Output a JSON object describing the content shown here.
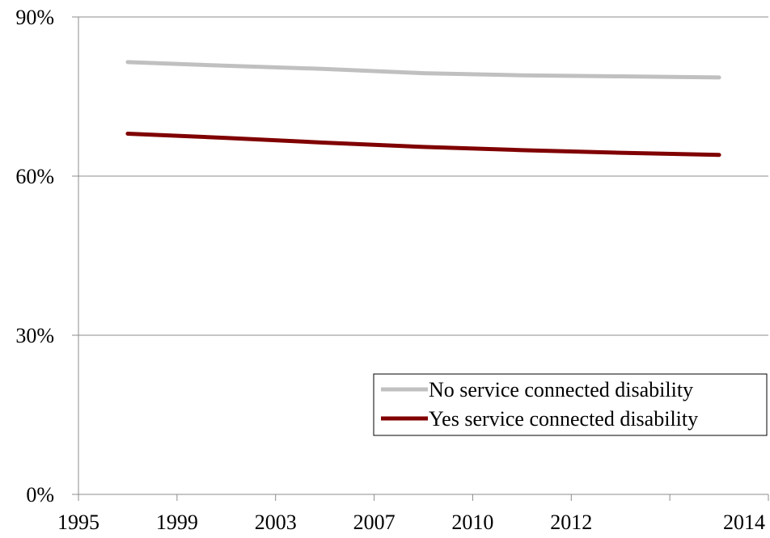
{
  "chart_data": {
    "type": "line",
    "title": "",
    "xlabel": "",
    "ylabel": "",
    "categories": [
      "1995",
      "1999",
      "2003",
      "2007",
      "2010",
      "2012",
      "2014"
    ],
    "y_ticks": [
      "0%",
      "30%",
      "60%",
      "90%"
    ],
    "y_tick_values": [
      0,
      30,
      60,
      90
    ],
    "ylim": [
      0,
      90
    ],
    "grid": "horizontal",
    "legend_position": "lower-right",
    "series": [
      {
        "name": "No service connected disability",
        "color": "#c0c0c0",
        "values": [
          81.5,
          80.8,
          80.2,
          79.4,
          79.0,
          78.8,
          78.6
        ]
      },
      {
        "name": "Yes service connected disability",
        "color": "#800000",
        "values": [
          68.0,
          67.2,
          66.3,
          65.5,
          64.9,
          64.4,
          64.0
        ]
      }
    ]
  }
}
